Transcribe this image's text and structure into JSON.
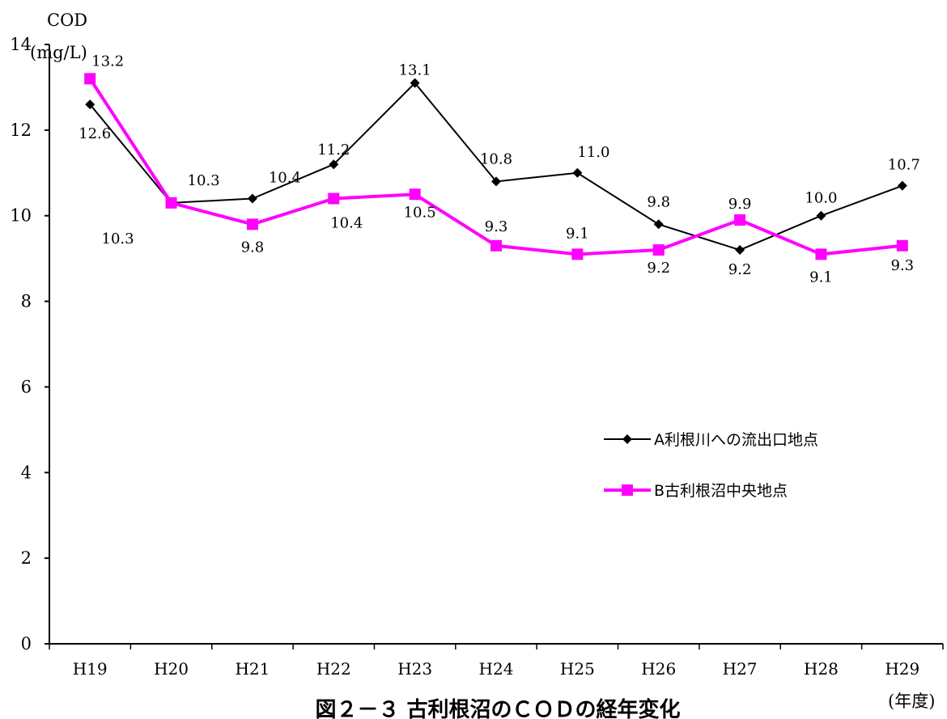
{
  "chart_data": {
    "type": "line",
    "title": "図２－３ 古利根沼のＣＯＤの経年変化",
    "ylabel": "COD",
    "yunit": "(mg/L)",
    "xunit": "(年度)",
    "ylim": [
      0,
      14
    ],
    "yticks": [
      0,
      2,
      4,
      6,
      8,
      10,
      12,
      14
    ],
    "categories": [
      "H19",
      "H20",
      "H21",
      "H22",
      "H23",
      "H24",
      "H25",
      "H26",
      "H27",
      "H28",
      "H29"
    ],
    "grid": false,
    "legend_position": "right",
    "series": [
      {
        "name": "A利根川への流出口地点",
        "color": "#000000",
        "marker": "diamond",
        "values": [
          12.6,
          10.3,
          10.4,
          11.2,
          13.1,
          10.8,
          11.0,
          9.8,
          9.2,
          10.0,
          10.7
        ],
        "labels": [
          "12.6",
          "10.3",
          "10.4",
          "11.2",
          "13.1",
          "10.8",
          "11.0",
          "9.8",
          "9.2",
          "10.0",
          "10.7"
        ]
      },
      {
        "name": "B古利根沼中央地点",
        "color": "#ff00ff",
        "marker": "square",
        "values": [
          13.2,
          10.3,
          9.8,
          10.4,
          10.5,
          9.3,
          9.1,
          9.2,
          9.9,
          9.1,
          9.3
        ],
        "labels": [
          "13.2",
          "10.3",
          "9.8",
          "10.4",
          "10.5",
          "9.3",
          "9.1",
          "9.2",
          "9.9",
          "9.1",
          "9.3"
        ]
      }
    ]
  }
}
